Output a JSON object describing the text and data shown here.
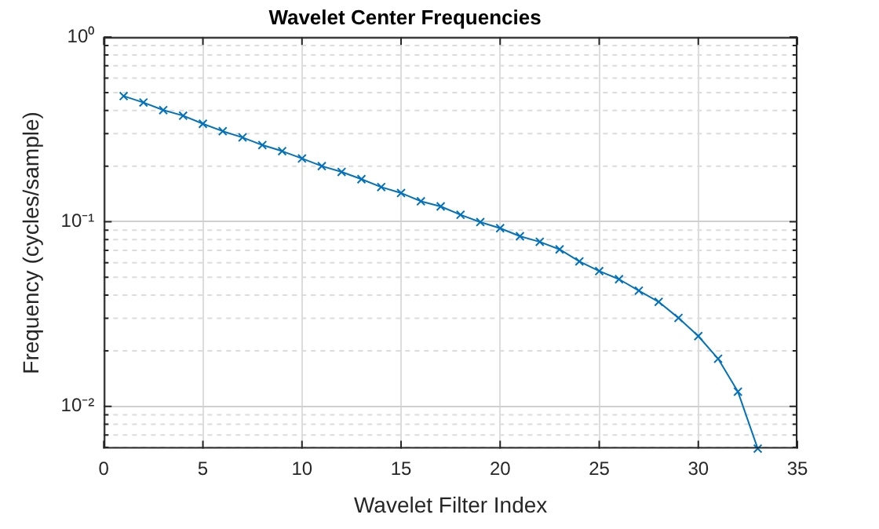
{
  "chart_data": {
    "type": "line",
    "title": "Wavelet Center Frequencies",
    "xlabel": "Wavelet Filter Index",
    "ylabel": "Frequency (cycles/sample)",
    "x": [
      1,
      2,
      3,
      4,
      5,
      6,
      7,
      8,
      9,
      10,
      11,
      12,
      13,
      14,
      15,
      16,
      17,
      18,
      19,
      20,
      21,
      22,
      23,
      24,
      25,
      26,
      27,
      28,
      29,
      30,
      31,
      32,
      33
    ],
    "series": [
      {
        "color": "#0072bd",
        "values": [
          0.479,
          0.442,
          0.402,
          0.375,
          0.339,
          0.309,
          0.286,
          0.26,
          0.241,
          0.22,
          0.2,
          0.186,
          0.17,
          0.154,
          0.143,
          0.129,
          0.121,
          0.109,
          0.0995,
          0.0922,
          0.0834,
          0.0778,
          0.0708,
          0.0609,
          0.054,
          0.0488,
          0.0423,
          0.0368,
          0.0301,
          0.024,
          0.0181,
          0.012,
          0.0059
        ]
      }
    ],
    "xlim": [
      0,
      35
    ],
    "xticks": [
      0,
      5,
      10,
      15,
      20,
      25,
      30,
      35
    ],
    "ylim": [
      0.0059,
      1
    ],
    "yticks": [
      {
        "value": 0.01,
        "label": "10⁻²"
      },
      {
        "value": 0.1,
        "label": "10⁻¹"
      },
      {
        "value": 1,
        "label": "10⁰"
      }
    ],
    "log": "y",
    "grid": true,
    "legend": false,
    "marker": "cross",
    "line_style": "solid"
  }
}
